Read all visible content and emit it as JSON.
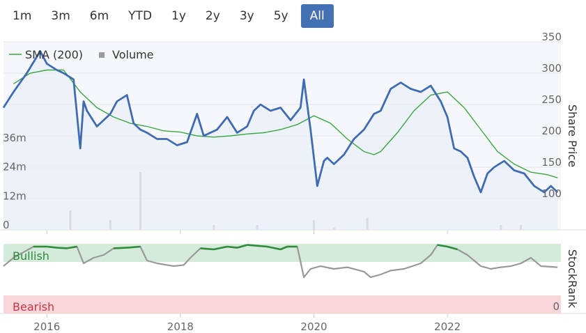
{
  "range_buttons": [
    {
      "label": "1m",
      "active": false
    },
    {
      "label": "3m",
      "active": false
    },
    {
      "label": "6m",
      "active": false
    },
    {
      "label": "YTD",
      "active": false
    },
    {
      "label": "1y",
      "active": false
    },
    {
      "label": "2y",
      "active": false
    },
    {
      "label": "3y",
      "active": false
    },
    {
      "label": "5y",
      "active": false
    },
    {
      "label": "All",
      "active": true
    }
  ],
  "legend": {
    "sma_label": "SMA (200)",
    "volume_label": "Volume"
  },
  "colors": {
    "price": "#3e6bb4",
    "sma": "#3aa640",
    "volume": "#c4c4cc",
    "stockrank": "#999999",
    "bullish_line": "#2e8b3a",
    "bullish_band": "#d4eadb",
    "bearish_band": "#f8d6da",
    "bearish_text": "#cc3344",
    "bullish_text": "#2e8b3a"
  },
  "chart_data": {
    "type": "line",
    "x_axis": {
      "ticks": [
        "2016",
        "2018",
        "2020",
        "2022"
      ]
    },
    "price_axis": {
      "title": "Share Price",
      "ticks": [
        100,
        150,
        200,
        250,
        300,
        350
      ],
      "range": [
        50,
        350
      ]
    },
    "volume_axis": {
      "ticks": [
        "0",
        "12m",
        "24m",
        "36m"
      ],
      "range": [
        0,
        36
      ]
    },
    "stockrank_axis": {
      "title": "StockRank",
      "ticks": [
        "0"
      ],
      "bullish_label": "Bullish",
      "bearish_label": "Bearish"
    },
    "series": [
      {
        "name": "Share Price",
        "x": [
          2015.35,
          2015.5,
          2015.7,
          2015.9,
          2016.0,
          2016.15,
          2016.25,
          2016.4,
          2016.5,
          2016.55,
          2016.6,
          2016.75,
          2016.85,
          2016.95,
          2017.05,
          2017.2,
          2017.3,
          2017.4,
          2017.5,
          2017.65,
          2017.8,
          2017.95,
          2018.1,
          2018.25,
          2018.35,
          2018.45,
          2018.55,
          2018.7,
          2018.85,
          2019.0,
          2019.1,
          2019.2,
          2019.35,
          2019.5,
          2019.65,
          2019.8,
          2019.85,
          2019.95,
          2020.05,
          2020.15,
          2020.2,
          2020.3,
          2020.45,
          2020.6,
          2020.75,
          2020.9,
          2021.0,
          2021.15,
          2021.3,
          2021.45,
          2021.6,
          2021.75,
          2021.9,
          2022.0,
          2022.1,
          2022.2,
          2022.3,
          2022.4,
          2022.5,
          2022.6,
          2022.7,
          2022.85,
          2023.0,
          2023.15,
          2023.3,
          2023.45,
          2023.55,
          2023.65
        ],
        "y": [
          245,
          270,
          300,
          335,
          315,
          305,
          300,
          290,
          180,
          255,
          240,
          215,
          225,
          235,
          255,
          265,
          220,
          210,
          205,
          195,
          195,
          185,
          190,
          235,
          200,
          205,
          210,
          230,
          205,
          215,
          240,
          250,
          240,
          245,
          225,
          245,
          290,
          210,
          120,
          160,
          165,
          155,
          170,
          195,
          210,
          235,
          240,
          275,
          285,
          275,
          270,
          280,
          255,
          230,
          180,
          175,
          165,
          135,
          110,
          140,
          150,
          160,
          145,
          140,
          120,
          110,
          120,
          110
        ]
      },
      {
        "name": "SMA (200)",
        "x": [
          2015.5,
          2015.75,
          2016.0,
          2016.25,
          2016.5,
          2016.75,
          2017.0,
          2017.25,
          2017.5,
          2017.75,
          2018.0,
          2018.25,
          2018.5,
          2018.75,
          2019.0,
          2019.25,
          2019.5,
          2019.75,
          2020.0,
          2020.25,
          2020.5,
          2020.75,
          2020.9,
          2021.0,
          2021.25,
          2021.5,
          2021.75,
          2022.0,
          2022.25,
          2022.5,
          2022.75,
          2023.0,
          2023.25,
          2023.5,
          2023.65
        ],
        "y": [
          283,
          300,
          305,
          305,
          270,
          245,
          230,
          220,
          215,
          208,
          206,
          200,
          198,
          200,
          203,
          205,
          210,
          218,
          232,
          220,
          195,
          175,
          170,
          175,
          205,
          240,
          265,
          270,
          245,
          210,
          175,
          155,
          142,
          138,
          133
        ]
      },
      {
        "name": "Volume",
        "unit": "m",
        "x": [
          2016.35,
          2016.95,
          2017.4,
          2018.5,
          2019.15,
          2020.0,
          2020.3,
          2020.8,
          2022.8,
          2023.1
        ],
        "values": [
          8,
          4,
          24,
          2,
          2,
          4,
          1,
          5,
          2,
          2
        ]
      }
    ],
    "stockrank": {
      "x": [
        2015.35,
        2015.5,
        2015.8,
        2016.0,
        2016.15,
        2016.3,
        2016.45,
        2016.55,
        2016.7,
        2016.85,
        2017.0,
        2017.2,
        2017.4,
        2017.5,
        2017.65,
        2017.9,
        2018.05,
        2018.15,
        2018.3,
        2018.5,
        2018.7,
        2018.85,
        2019.0,
        2019.3,
        2019.5,
        2019.6,
        2019.75,
        2019.85,
        2019.95,
        2020.1,
        2020.3,
        2020.5,
        2020.75,
        2020.85,
        2021.0,
        2021.15,
        2021.35,
        2021.6,
        2021.75,
        2021.85,
        2022.0,
        2022.15,
        2022.3,
        2022.5,
        2022.65,
        2022.8,
        2022.95,
        2023.1,
        2023.25,
        2023.4,
        2023.65
      ],
      "y": [
        60,
        75,
        95,
        95,
        93,
        92,
        95,
        65,
        75,
        80,
        92,
        93,
        95,
        70,
        65,
        60,
        62,
        75,
        92,
        90,
        95,
        93,
        98,
        95,
        90,
        95,
        95,
        40,
        55,
        60,
        55,
        58,
        50,
        40,
        45,
        52,
        55,
        65,
        80,
        98,
        95,
        90,
        80,
        60,
        55,
        58,
        60,
        65,
        75,
        60,
        58
      ]
    }
  }
}
